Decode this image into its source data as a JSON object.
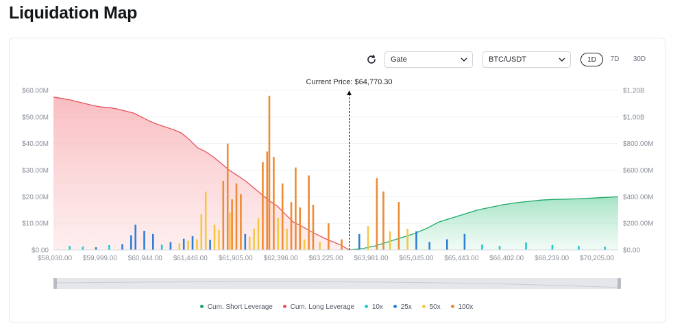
{
  "page": {
    "title": "Liquidation Map"
  },
  "controls": {
    "exchange": "Gate",
    "pair": "BTC/USDT",
    "ranges": [
      "1D",
      "7D",
      "30D"
    ],
    "active_range": "1D"
  },
  "colors": {
    "short": "#1aa865",
    "long": "#e8525a",
    "10x": "#22c9cf",
    "25x": "#2f7fd6",
    "50x": "#f5c842",
    "100x": "#ee8a34"
  },
  "chart_data": {
    "type": "bar",
    "current_price_label": "Current Price: $64,770.30",
    "current_price": 64770.3,
    "y_left": {
      "ticks": [
        "$0.00",
        "$10.00M",
        "$20.00M",
        "$30.00M",
        "$40.00M",
        "$50.00M",
        "$60.00M"
      ],
      "range": [
        0,
        60
      ]
    },
    "y_right": {
      "ticks": [
        "$0.00",
        "$200.00M",
        "$400.00M",
        "$600.00M",
        "$800.00M",
        "$1.00B",
        "$1.20B"
      ],
      "range": [
        0,
        1200
      ]
    },
    "x_ticks": [
      "$58,030.00",
      "$59,999.00",
      "$60,944.00",
      "$61,446.00",
      "$61,905.00",
      "$62,396.00",
      "$63,225.00",
      "$63,981.00",
      "$65,045.00",
      "$65,443.00",
      "$66,402.00",
      "$68,239.00",
      "$70,205.00"
    ],
    "legend": [
      {
        "key": "short",
        "label": "Cum. Short Leverage"
      },
      {
        "key": "long",
        "label": "Cum. Long Leverage"
      },
      {
        "key": "10x",
        "label": "10x"
      },
      {
        "key": "25x",
        "label": "25x"
      },
      {
        "key": "50x",
        "label": "50x"
      },
      {
        "key": "100x",
        "label": "100x"
      }
    ],
    "cum_long_millions": [
      1150,
      1140,
      1130,
      1115,
      1100,
      1085,
      1075,
      1070,
      1060,
      1045,
      1030,
      1000,
      970,
      945,
      925,
      905,
      880,
      830,
      770,
      740,
      700,
      650,
      600,
      560,
      520,
      470,
      420,
      370,
      330,
      270,
      210,
      180,
      145,
      115,
      85,
      60,
      35,
      0
    ],
    "cum_short_millions": [
      0,
      10,
      30,
      60,
      90,
      120,
      160,
      210,
      240,
      270,
      300,
      320,
      340,
      355,
      365,
      375,
      380,
      382,
      386,
      390,
      395,
      400
    ],
    "leverage_bars": [
      {
        "x": 58400,
        "lev": "10x",
        "v": 1.5
      },
      {
        "x": 58700,
        "lev": "10x",
        "v": 1.2
      },
      {
        "x": 59000,
        "lev": "25x",
        "v": 1.0
      },
      {
        "x": 59300,
        "lev": "10x",
        "v": 1.8
      },
      {
        "x": 59600,
        "lev": "25x",
        "v": 2.2
      },
      {
        "x": 59800,
        "lev": "25x",
        "v": 5.5
      },
      {
        "x": 59900,
        "lev": "25x",
        "v": 9.5
      },
      {
        "x": 60100,
        "lev": "25x",
        "v": 7.2
      },
      {
        "x": 60300,
        "lev": "25x",
        "v": 6.0
      },
      {
        "x": 60500,
        "lev": "10x",
        "v": 2.0
      },
      {
        "x": 60700,
        "lev": "25x",
        "v": 3.0
      },
      {
        "x": 60900,
        "lev": "50x",
        "v": 2.5
      },
      {
        "x": 61000,
        "lev": "25x",
        "v": 4.2
      },
      {
        "x": 61100,
        "lev": "50x",
        "v": 3.5
      },
      {
        "x": 61200,
        "lev": "25x",
        "v": 5.2
      },
      {
        "x": 61300,
        "lev": "50x",
        "v": 4.0
      },
      {
        "x": 61400,
        "lev": "50x",
        "v": 13.5
      },
      {
        "x": 61500,
        "lev": "50x",
        "v": 22.0
      },
      {
        "x": 61600,
        "lev": "25x",
        "v": 3.8
      },
      {
        "x": 61700,
        "lev": "50x",
        "v": 9.5
      },
      {
        "x": 61800,
        "lev": "50x",
        "v": 7.5
      },
      {
        "x": 61900,
        "lev": "100x",
        "v": 26.0
      },
      {
        "x": 62000,
        "lev": "100x",
        "v": 40.0
      },
      {
        "x": 62050,
        "lev": "50x",
        "v": 14.0
      },
      {
        "x": 62100,
        "lev": "100x",
        "v": 19.0
      },
      {
        "x": 62200,
        "lev": "100x",
        "v": 25.0
      },
      {
        "x": 62300,
        "lev": "100x",
        "v": 21.0
      },
      {
        "x": 62400,
        "lev": "25x",
        "v": 6.0
      },
      {
        "x": 62500,
        "lev": "50x",
        "v": 5.0
      },
      {
        "x": 62600,
        "lev": "50x",
        "v": 8.0
      },
      {
        "x": 62700,
        "lev": "50x",
        "v": 12.0
      },
      {
        "x": 62800,
        "lev": "100x",
        "v": 33.0
      },
      {
        "x": 62900,
        "lev": "100x",
        "v": 37.0
      },
      {
        "x": 62950,
        "lev": "100x",
        "v": 58.0
      },
      {
        "x": 63050,
        "lev": "100x",
        "v": 35.0
      },
      {
        "x": 63150,
        "lev": "50x",
        "v": 12.0
      },
      {
        "x": 63250,
        "lev": "100x",
        "v": 25.0
      },
      {
        "x": 63350,
        "lev": "50x",
        "v": 8.0
      },
      {
        "x": 63450,
        "lev": "100x",
        "v": 18.0
      },
      {
        "x": 63550,
        "lev": "100x",
        "v": 31.0
      },
      {
        "x": 63650,
        "lev": "100x",
        "v": 16.0
      },
      {
        "x": 63750,
        "lev": "50x",
        "v": 4.0
      },
      {
        "x": 63850,
        "lev": "100x",
        "v": 28.0
      },
      {
        "x": 63950,
        "lev": "100x",
        "v": 17.0
      },
      {
        "x": 64100,
        "lev": "50x",
        "v": 3.0
      },
      {
        "x": 64300,
        "lev": "100x",
        "v": 10.0
      },
      {
        "x": 64600,
        "lev": "100x",
        "v": 4.0
      },
      {
        "x": 65000,
        "lev": "25x",
        "v": 6.0
      },
      {
        "x": 65200,
        "lev": "50x",
        "v": 9.0
      },
      {
        "x": 65400,
        "lev": "100x",
        "v": 27.0
      },
      {
        "x": 65550,
        "lev": "100x",
        "v": 22.0
      },
      {
        "x": 65700,
        "lev": "50x",
        "v": 7.0
      },
      {
        "x": 65900,
        "lev": "100x",
        "v": 18.0
      },
      {
        "x": 66100,
        "lev": "50x",
        "v": 8.0
      },
      {
        "x": 66300,
        "lev": "25x",
        "v": 7.0
      },
      {
        "x": 66600,
        "lev": "25x",
        "v": 3.0
      },
      {
        "x": 67000,
        "lev": "25x",
        "v": 4.0
      },
      {
        "x": 67400,
        "lev": "25x",
        "v": 6.0
      },
      {
        "x": 67800,
        "lev": "10x",
        "v": 2.0
      },
      {
        "x": 68200,
        "lev": "10x",
        "v": 1.5
      },
      {
        "x": 68800,
        "lev": "10x",
        "v": 2.8
      },
      {
        "x": 69400,
        "lev": "10x",
        "v": 1.8
      },
      {
        "x": 70000,
        "lev": "10x",
        "v": 1.5
      },
      {
        "x": 70600,
        "lev": "10x",
        "v": 1.2
      }
    ]
  }
}
